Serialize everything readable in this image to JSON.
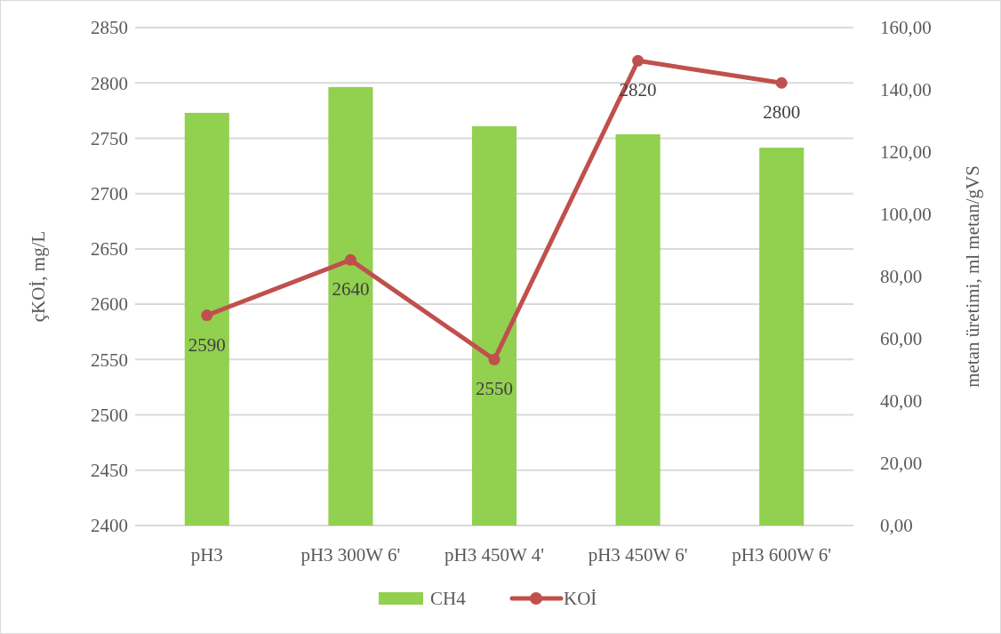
{
  "chart_data": {
    "type": "bar",
    "ylabel": "çKOİ, mg/L",
    "y2label": "metan üretimi, ml metan/gVS",
    "categories": [
      "pH3",
      "pH3 300W 6'",
      "pH3 450W 4'",
      "pH3 450W 6'",
      "pH3 600W 6'"
    ],
    "series": [
      {
        "name": "CH4",
        "axis": "y2",
        "color": "#92d050",
        "values": [
          132.6,
          140.9,
          128.3,
          125.7,
          121.4
        ]
      },
      {
        "name": "KOİ",
        "type": "line",
        "axis": "y",
        "color": "#c0504d",
        "marker": "circle",
        "data_labels": true,
        "values": [
          2590,
          2640,
          2550,
          2820,
          2800
        ]
      }
    ],
    "ylim": [
      2400,
      2850
    ],
    "yticks": [
      2400,
      2450,
      2500,
      2550,
      2600,
      2650,
      2700,
      2750,
      2800,
      2850
    ],
    "y2lim": [
      0,
      160
    ],
    "y2ticks": [
      {
        "value": 0,
        "label": "0,00"
      },
      {
        "value": 20,
        "label": "20,00"
      },
      {
        "value": 40,
        "label": "40,00"
      },
      {
        "value": 60,
        "label": "60,00"
      },
      {
        "value": 80,
        "label": "80,00"
      },
      {
        "value": 100,
        "label": "100,00"
      },
      {
        "value": 120,
        "label": "120,00"
      },
      {
        "value": 140,
        "label": "140,00"
      },
      {
        "value": 160,
        "label": "160,00"
      }
    ],
    "grid": "y",
    "legend": "bottom"
  }
}
